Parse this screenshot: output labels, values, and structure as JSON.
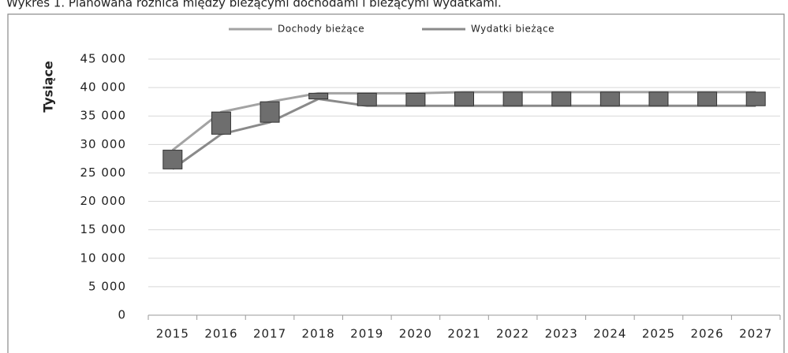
{
  "chart_data": {
    "type": "line",
    "title": "Wykres 1. Planowana różnica między bieżącymi dochodami i bieżącymi wydatkami.",
    "y_label": "Tysiące",
    "categories": [
      "2015",
      "2016",
      "2017",
      "2018",
      "2019",
      "2020",
      "2021",
      "2022",
      "2023",
      "2024",
      "2025",
      "2026",
      "2027"
    ],
    "series": [
      {
        "name": "Dochody bieżące",
        "color": "#a3a3a3",
        "values": [
          29000,
          35700,
          37500,
          39000,
          39000,
          39000,
          39200,
          39200,
          39200,
          39200,
          39200,
          39200,
          39200
        ]
      },
      {
        "name": "Wydatki bieżące",
        "color": "#8a8a8a",
        "values": [
          25700,
          31800,
          33900,
          38000,
          36800,
          36800,
          36800,
          36800,
          36800,
          36800,
          36800,
          36800,
          36800
        ]
      }
    ],
    "updown_color": "#6e6e6e",
    "ylim": [
      0,
      45000
    ],
    "yticks": [
      {
        "value": 0,
        "label": "0"
      },
      {
        "value": 5000,
        "label": "5 000"
      },
      {
        "value": 10000,
        "label": "10 000"
      },
      {
        "value": 15000,
        "label": "15 000"
      },
      {
        "value": 20000,
        "label": "20 000"
      },
      {
        "value": 25000,
        "label": "25 000"
      },
      {
        "value": 30000,
        "label": "30 000"
      },
      {
        "value": 35000,
        "label": "35 000"
      },
      {
        "value": 40000,
        "label": "40 000"
      },
      {
        "value": 45000,
        "label": "45 000"
      }
    ],
    "grid": true
  }
}
